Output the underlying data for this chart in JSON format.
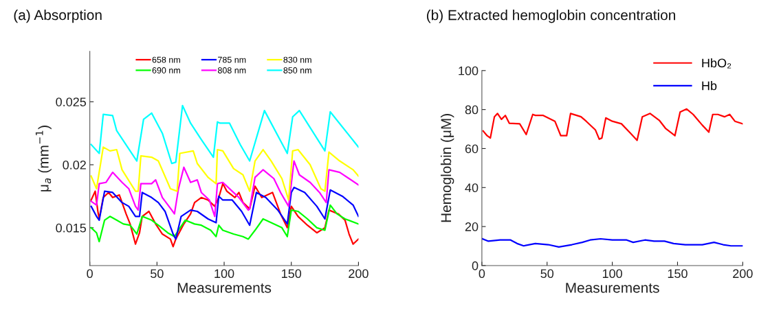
{
  "chart_data": [
    {
      "type": "line",
      "title": "(a) Absorption",
      "xlabel": "Measurements",
      "ylabel": "μ$_{a}$ (mm$^{−1}$)",
      "xlim": [
        0,
        200
      ],
      "xticks": [
        0,
        50,
        100,
        150,
        200
      ],
      "ylim": [
        0.012,
        0.029
      ],
      "yticks": [
        0.015,
        0.02,
        0.025
      ],
      "grid": false,
      "legend": "top",
      "marker": "none",
      "line_style": "solid",
      "series": [
        {
          "name": "658 nm",
          "color": "#ff0000",
          "x": [
            1,
            4,
            6,
            7,
            10,
            14,
            17,
            22,
            27,
            30,
            34,
            37,
            39,
            44,
            49,
            54,
            60,
            62,
            64,
            70,
            75,
            78,
            83,
            88,
            93,
            96,
            99,
            102,
            108,
            111,
            114,
            119,
            123,
            128,
            136,
            142,
            147,
            150,
            155,
            162,
            169,
            175,
            178,
            185,
            190,
            193,
            196,
            200
          ],
          "values": [
            0.0172,
            0.0179,
            0.0163,
            0.0157,
            0.0174,
            0.0178,
            0.0174,
            0.0176,
            0.0161,
            0.0153,
            0.0137,
            0.0146,
            0.0159,
            0.0163,
            0.0153,
            0.0145,
            0.0141,
            0.0135,
            0.0141,
            0.0153,
            0.0161,
            0.017,
            0.0174,
            0.0172,
            0.0167,
            0.0174,
            0.0185,
            0.0179,
            0.0174,
            0.0178,
            0.017,
            0.0165,
            0.0183,
            0.0174,
            0.0178,
            0.0161,
            0.015,
            0.0167,
            0.0159,
            0.0152,
            0.0146,
            0.015,
            0.0164,
            0.0161,
            0.0156,
            0.0145,
            0.0137,
            0.0141
          ]
        },
        {
          "name": "690 nm",
          "color": "#00ff00",
          "x": [
            1,
            5,
            7,
            11,
            15,
            20,
            25,
            30,
            35,
            39,
            46,
            51,
            58,
            63,
            66,
            71,
            78,
            83,
            90,
            94,
            96,
            99,
            107,
            114,
            118,
            123,
            129,
            137,
            143,
            147,
            150,
            155,
            162,
            169,
            175,
            179,
            184,
            190,
            200
          ],
          "values": [
            0.015,
            0.0146,
            0.0139,
            0.0156,
            0.0159,
            0.0156,
            0.0153,
            0.0152,
            0.0145,
            0.0159,
            0.0156,
            0.0152,
            0.0146,
            0.0143,
            0.0148,
            0.0156,
            0.0153,
            0.0152,
            0.0148,
            0.0143,
            0.0152,
            0.0148,
            0.0145,
            0.0143,
            0.0141,
            0.0148,
            0.0157,
            0.0153,
            0.015,
            0.0143,
            0.0164,
            0.0163,
            0.0157,
            0.015,
            0.0148,
            0.0168,
            0.0161,
            0.0157,
            0.0153
          ]
        },
        {
          "name": "785 nm",
          "color": "#0000ff",
          "x": [
            1,
            5,
            7,
            11,
            17,
            24,
            29,
            34,
            37,
            39,
            46,
            51,
            56,
            62,
            64,
            68,
            75,
            80,
            88,
            94,
            96,
            99,
            106,
            113,
            119,
            124,
            131,
            140,
            147,
            150,
            152,
            160,
            169,
            175,
            179,
            188,
            196,
            200
          ],
          "values": [
            0.0167,
            0.0159,
            0.0156,
            0.0179,
            0.0178,
            0.017,
            0.0167,
            0.0159,
            0.0159,
            0.0178,
            0.0174,
            0.017,
            0.0163,
            0.0145,
            0.0141,
            0.0159,
            0.0164,
            0.0163,
            0.0157,
            0.0154,
            0.0175,
            0.0172,
            0.0172,
            0.0163,
            0.0152,
            0.0178,
            0.0174,
            0.0164,
            0.0153,
            0.0178,
            0.0182,
            0.0178,
            0.0167,
            0.0157,
            0.018,
            0.0175,
            0.0168,
            0.0159
          ]
        },
        {
          "name": "808 nm",
          "color": "#ff00ff",
          "x": [
            1,
            5,
            7,
            12,
            17,
            24,
            29,
            34,
            36,
            38,
            46,
            49,
            54,
            61,
            63,
            66,
            70,
            75,
            80,
            83,
            89,
            93,
            95,
            99,
            106,
            111,
            118,
            119,
            123,
            129,
            137,
            142,
            148,
            152,
            156,
            164,
            171,
            176,
            178,
            186,
            193,
            200
          ],
          "values": [
            0.0171,
            0.0168,
            0.0185,
            0.0186,
            0.0194,
            0.0186,
            0.0181,
            0.0167,
            0.0164,
            0.0185,
            0.0185,
            0.0188,
            0.0174,
            0.0164,
            0.0161,
            0.0181,
            0.0198,
            0.0186,
            0.0188,
            0.0178,
            0.0172,
            0.0159,
            0.0185,
            0.0186,
            0.0179,
            0.0174,
            0.0164,
            0.0165,
            0.019,
            0.0196,
            0.0189,
            0.0178,
            0.0167,
            0.0203,
            0.0192,
            0.0186,
            0.0178,
            0.017,
            0.0196,
            0.0194,
            0.0189,
            0.0184
          ]
        },
        {
          "name": "830 nm",
          "color": "#ffff00",
          "x": [
            1,
            5,
            10,
            15,
            20,
            24,
            34,
            36,
            38,
            46,
            51,
            60,
            65,
            67,
            77,
            80,
            88,
            94,
            95,
            99,
            107,
            114,
            119,
            123,
            129,
            135,
            143,
            148,
            151,
            155,
            164,
            172,
            175,
            178,
            186,
            196,
            200
          ],
          "values": [
            0.0191,
            0.0181,
            0.0214,
            0.0211,
            0.0212,
            0.0196,
            0.0179,
            0.0179,
            0.0207,
            0.0206,
            0.0203,
            0.0181,
            0.0179,
            0.0209,
            0.0211,
            0.0201,
            0.019,
            0.0185,
            0.0212,
            0.0211,
            0.0197,
            0.0192,
            0.0179,
            0.0203,
            0.0212,
            0.0203,
            0.0189,
            0.0172,
            0.0211,
            0.0212,
            0.02,
            0.0181,
            0.0179,
            0.021,
            0.0203,
            0.0196,
            0.0191
          ]
        },
        {
          "name": "850 nm",
          "color": "#00ffff",
          "x": [
            1,
            7,
            10,
            17,
            20,
            35,
            40,
            46,
            54,
            61,
            64,
            69,
            75,
            83,
            92,
            95,
            97,
            104,
            112,
            119,
            130,
            147,
            151,
            156,
            175,
            179,
            200
          ],
          "values": [
            0.0216,
            0.0209,
            0.024,
            0.0239,
            0.0227,
            0.0203,
            0.0236,
            0.0241,
            0.0225,
            0.0201,
            0.0202,
            0.0247,
            0.0233,
            0.022,
            0.0206,
            0.0234,
            0.0233,
            0.0233,
            0.0216,
            0.0203,
            0.0243,
            0.0209,
            0.0238,
            0.0243,
            0.0211,
            0.0242,
            0.0214
          ]
        }
      ]
    },
    {
      "type": "line",
      "title": "(b) Extracted hemoglobin concentration",
      "xlabel": "Measurements",
      "ylabel": "Hemoglobin (μM)",
      "xlim": [
        0,
        200
      ],
      "xticks": [
        0,
        50,
        100,
        150,
        200
      ],
      "ylim": [
        0,
        100
      ],
      "yticks": [
        0,
        20,
        40,
        60,
        80,
        100
      ],
      "grid": false,
      "legend": "top right",
      "marker": "none",
      "line_style": "solid",
      "series": [
        {
          "name": "HbO₂",
          "color": "#ff0000",
          "x": [
            1,
            4,
            6.5,
            9.6,
            12,
            15,
            18,
            21,
            29,
            34,
            39,
            41,
            47,
            56,
            60.5,
            65,
            68,
            76,
            80,
            87,
            90,
            92,
            95,
            100,
            107,
            114,
            119,
            123,
            129,
            136,
            141,
            148,
            152,
            157,
            162,
            169,
            174,
            177,
            181,
            186,
            190,
            194,
            200
          ],
          "values": [
            69,
            66.6,
            65.4,
            76.3,
            78,
            75,
            77,
            73,
            72.7,
            67.2,
            77.5,
            77,
            77,
            74,
            66.6,
            66.6,
            78,
            76.3,
            74,
            69.6,
            64.8,
            65.4,
            75.7,
            74,
            72.7,
            67.8,
            64.2,
            76.3,
            78,
            74.5,
            70.2,
            66.6,
            78.7,
            80.3,
            77.5,
            72,
            68.4,
            77.5,
            77.5,
            76.3,
            77.5,
            74,
            72.7
          ]
        },
        {
          "name": "Hb",
          "color": "#0000ff",
          "x": [
            0.5,
            5,
            14,
            22,
            27,
            32,
            41,
            51,
            59,
            69,
            77,
            83,
            91,
            100,
            111,
            116,
            125,
            132,
            140,
            147,
            156,
            169,
            178,
            185,
            191,
            200
          ],
          "values": [
            13.7,
            12.5,
            13.1,
            13.1,
            11.3,
            10.1,
            11.3,
            10.7,
            9.5,
            10.7,
            11.9,
            13.1,
            13.7,
            13.1,
            13.1,
            11.9,
            13.1,
            12.5,
            12.5,
            11.3,
            10.7,
            10.7,
            11.9,
            10.7,
            10.1,
            10.1
          ]
        }
      ]
    }
  ]
}
